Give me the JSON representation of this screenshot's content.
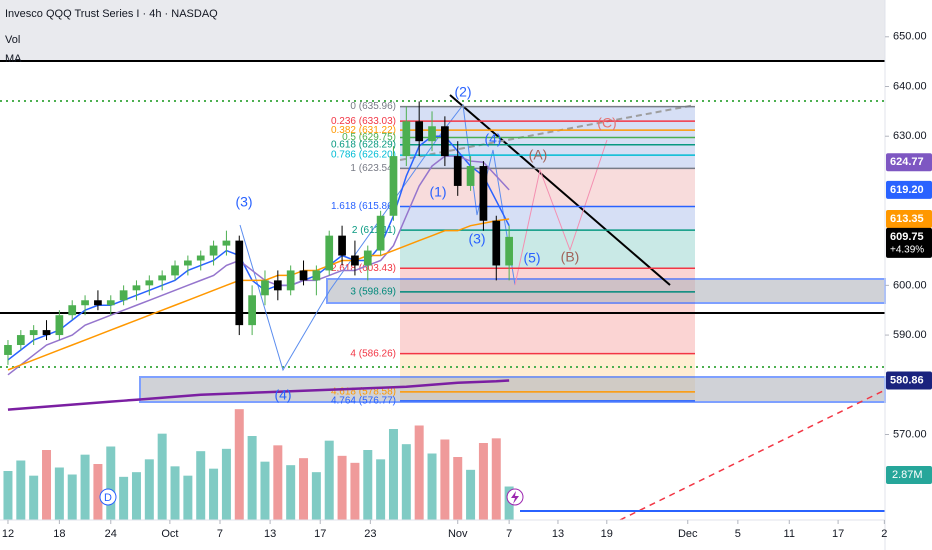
{
  "chart_data": {
    "type": "candlestick",
    "title": "Invesco QQQ Trust Series I · 4h · NASDAQ",
    "indicators": [
      "Vol",
      "MA"
    ],
    "ylim": [
      552.8,
      657.4
    ],
    "yticks": [
      {
        "value": 570,
        "label": "570.00"
      },
      {
        "value": 590,
        "label": "590.00"
      },
      {
        "value": 600,
        "label": "600.00"
      },
      {
        "value": 630,
        "label": "630.00"
      },
      {
        "value": 640,
        "label": "640.00"
      },
      {
        "value": 650,
        "label": "650.00"
      }
    ],
    "xlim": [
      -0.62,
      68.25
    ],
    "xticks": [
      {
        "value": 0,
        "label": "12"
      },
      {
        "value": 4,
        "label": "18"
      },
      {
        "value": 8,
        "label": "24"
      },
      {
        "value": 12.6,
        "label": "Oct"
      },
      {
        "value": 16.5,
        "label": "7"
      },
      {
        "value": 20.4,
        "label": "13"
      },
      {
        "value": 24.3,
        "label": "17"
      },
      {
        "value": 28.2,
        "label": "23"
      },
      {
        "value": 35,
        "label": "Nov"
      },
      {
        "value": 39,
        "label": "7"
      },
      {
        "value": 42.8,
        "label": "13"
      },
      {
        "value": 46.6,
        "label": "19"
      },
      {
        "value": 52.9,
        "label": "Dec"
      },
      {
        "value": 56.8,
        "label": "5"
      },
      {
        "value": 60.8,
        "label": "11"
      },
      {
        "value": 64.6,
        "label": "17"
      },
      {
        "value": 68.2,
        "label": "2"
      }
    ],
    "grid": false,
    "up_color": "#4caf50",
    "down_color": "#000000",
    "open": [
      586,
      588,
      590,
      591,
      590,
      594,
      596,
      597,
      596,
      597,
      599,
      600,
      601,
      602,
      604,
      605,
      606,
      608,
      609,
      592,
      598,
      601,
      599,
      603,
      601,
      603,
      610,
      606,
      604,
      607,
      614,
      626,
      633,
      629,
      632,
      626,
      620,
      624,
      613,
      604
    ],
    "high": [
      589,
      591,
      592,
      593,
      595,
      597,
      598,
      599,
      598,
      600,
      601,
      602,
      603,
      605,
      606,
      607,
      609,
      611,
      610,
      600,
      603,
      603,
      604,
      605,
      604,
      611,
      612,
      609,
      608,
      615,
      628,
      636,
      637,
      635,
      634,
      629,
      626,
      625,
      614,
      612
    ],
    "low": [
      584,
      587,
      588,
      589,
      589,
      593,
      594,
      595,
      594,
      596,
      597,
      598,
      599,
      601,
      602,
      603,
      604,
      606,
      590,
      590,
      596,
      597,
      598,
      600,
      598,
      602,
      604,
      602,
      601,
      606,
      613,
      624,
      626,
      627,
      624,
      618,
      619,
      611,
      601,
      601
    ],
    "close": [
      588,
      590,
      591,
      590,
      594,
      596,
      597,
      596,
      597,
      599,
      600,
      601,
      602,
      604,
      605,
      606,
      608,
      609,
      592,
      598,
      601,
      599,
      603,
      601,
      603,
      610,
      606,
      604,
      607,
      614,
      626,
      633,
      629,
      632,
      626,
      620,
      624,
      613,
      604,
      609.75
    ],
    "volume": {
      "vlim": [
        0,
        12
      ],
      "up_color": "#80cbc4",
      "down_color": "#ef9a9a",
      "values": [
        4.2,
        5.1,
        3.8,
        6.0,
        4.5,
        3.9,
        5.6,
        4.8,
        6.3,
        3.7,
        4.1,
        5.2,
        7.4,
        4.6,
        3.8,
        5.9,
        4.4,
        6.1,
        9.5,
        7.2,
        5.0,
        6.4,
        4.7,
        5.3,
        4.1,
        6.8,
        5.5,
        4.9,
        6.0,
        5.2,
        7.8,
        6.5,
        8.1,
        5.7,
        6.9,
        5.4,
        4.3,
        6.6,
        7.0,
        2.87
      ],
      "last_label": "2.87M",
      "last_color": "#26a69a"
    },
    "series": [
      {
        "color": "#2962ff",
        "values": [
          585,
          587,
          589,
          590,
          591,
          593,
          595,
          596,
          596,
          597,
          598,
          599,
          600,
          601,
          603,
          604,
          605,
          607,
          606,
          601,
          599,
          600,
          600,
          601,
          602,
          604,
          606,
          605,
          605,
          608,
          614,
          622,
          628,
          630,
          630,
          627,
          624,
          622,
          617,
          612
        ]
      },
      {
        "color": "#9575cd",
        "values": [
          582,
          584,
          586,
          588,
          589,
          590,
          592,
          593,
          594,
          595,
          596,
          597,
          598,
          599,
          600,
          601,
          602,
          604,
          605,
          603,
          601,
          600,
          600,
          601,
          601,
          602,
          603,
          603,
          604,
          605,
          608,
          614,
          620,
          624,
          626,
          626,
          625,
          624.77,
          622,
          619.2
        ]
      },
      {
        "color": "#ff9800",
        "values": [
          583,
          584,
          585,
          586,
          587,
          588,
          589,
          590,
          591,
          592,
          593,
          594,
          595,
          596,
          597,
          598,
          599,
          600,
          601,
          601,
          601,
          602,
          602,
          603,
          603,
          604,
          605,
          605,
          606,
          606,
          607,
          608,
          609,
          610,
          611,
          611,
          612,
          612.5,
          613,
          613.35
        ]
      },
      {
        "color": "#7b1fa2",
        "values": [
          575,
          575.2,
          575.4,
          575.6,
          575.8,
          576,
          576.2,
          576.4,
          576.6,
          576.8,
          577,
          577.2,
          577.4,
          577.6,
          577.8,
          578,
          578.1,
          578.2,
          578.3,
          578.4,
          578.5,
          578.6,
          578.7,
          578.8,
          578.9,
          579,
          579.1,
          579.2,
          579.3,
          579.4,
          579.5,
          579.6,
          579.8,
          580,
          580.2,
          580.4,
          580.5,
          580.6,
          580.7,
          580.86
        ]
      }
    ],
    "badges": [
      {
        "value": 624.77,
        "label": "624.77",
        "color": "#7e57c2"
      },
      {
        "value": 619.2,
        "label": "619.20",
        "color": "#2962ff"
      },
      {
        "value": 613.35,
        "label": "613.35",
        "color": "#ff9800"
      },
      {
        "value": 609.75,
        "label": "609.75",
        "color": "#000000",
        "change": "+4.39%"
      },
      {
        "value": 580.86,
        "label": "580.86",
        "color": "#1a237e"
      }
    ],
    "fib_levels": [
      {
        "label": "0 (635.96)",
        "price": 635.96,
        "color": "#787b86"
      },
      {
        "label": "0.236 (633.03)",
        "price": 633.03,
        "color": "#f23645"
      },
      {
        "label": "0.382 (631.22)",
        "price": 631.22,
        "color": "#ff9800"
      },
      {
        "label": "0.5 (629.75)",
        "price": 629.75,
        "color": "#4caf50"
      },
      {
        "label": "0.618 (628.29)",
        "price": 628.29,
        "color": "#089981"
      },
      {
        "label": "0.786 (626.20)",
        "price": 626.2,
        "color": "#00bcd4"
      },
      {
        "label": "1 (623.54)",
        "price": 623.54,
        "color": "#787b86"
      },
      {
        "label": "1.618 (615.86)",
        "price": 615.86,
        "color": "#2962ff"
      },
      {
        "label": "2 (611.11)",
        "price": 611.11,
        "color": "#089981"
      },
      {
        "label": "2.618 (603.43)",
        "price": 603.43,
        "color": "#f23645"
      },
      {
        "label": "3 (598.69)",
        "price": 598.69,
        "color": "#00897b"
      },
      {
        "label": "4 (586.26)",
        "price": 586.26,
        "color": "#f23645"
      },
      {
        "label": "4.618 (578.58)",
        "price": 578.58,
        "color": "#ff9800"
      },
      {
        "label": "4.764 (576.77)",
        "price": 576.77,
        "color": "#2962ff"
      }
    ],
    "wave_labels": [
      {
        "text": "(3)",
        "color": "#2962ff"
      },
      {
        "text": "(4)",
        "color": "#2962ff"
      },
      {
        "text": "(1)",
        "color": "#2962ff"
      },
      {
        "text": "(2)",
        "color": "#2962ff"
      },
      {
        "text": "(3)",
        "color": "#2962ff"
      },
      {
        "text": "(4)",
        "color": "#2962ff"
      },
      {
        "text": "(5)",
        "color": "#2962ff"
      },
      {
        "text": "(A)",
        "color": "#a1635a"
      },
      {
        "text": "(B)",
        "color": "#a1635a"
      },
      {
        "text": "(C)",
        "color": "#e57373"
      }
    ],
    "markers": [
      "D"
    ]
  }
}
